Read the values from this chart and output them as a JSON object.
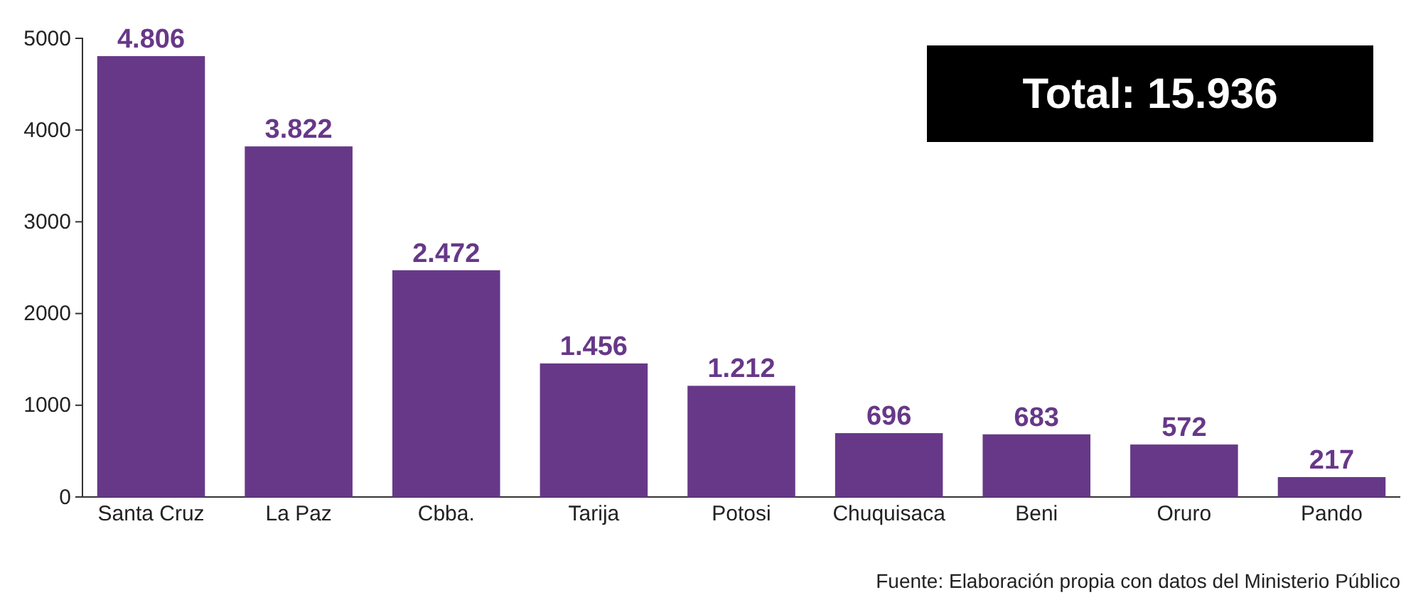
{
  "chart_data": {
    "type": "bar",
    "categories": [
      "Santa Cruz",
      "La Paz",
      "Cbba.",
      "Tarija",
      "Potosi",
      "Chuquisaca",
      "Beni",
      "Oruro",
      "Pando"
    ],
    "values": [
      4806,
      3822,
      2472,
      1456,
      1212,
      696,
      683,
      572,
      217
    ],
    "value_labels": [
      "4.806",
      "3.822",
      "2.472",
      "1.456",
      "1.212",
      "696",
      "683",
      "572",
      "217"
    ],
    "color": "#673888",
    "ylim": [
      0,
      5000
    ],
    "yticks": [
      0,
      1000,
      2000,
      3000,
      4000,
      5000
    ],
    "grid": false,
    "annotations": [
      "Total: 15.936",
      "Fuente: Elaboración propia con datos del Ministerio Público"
    ]
  }
}
